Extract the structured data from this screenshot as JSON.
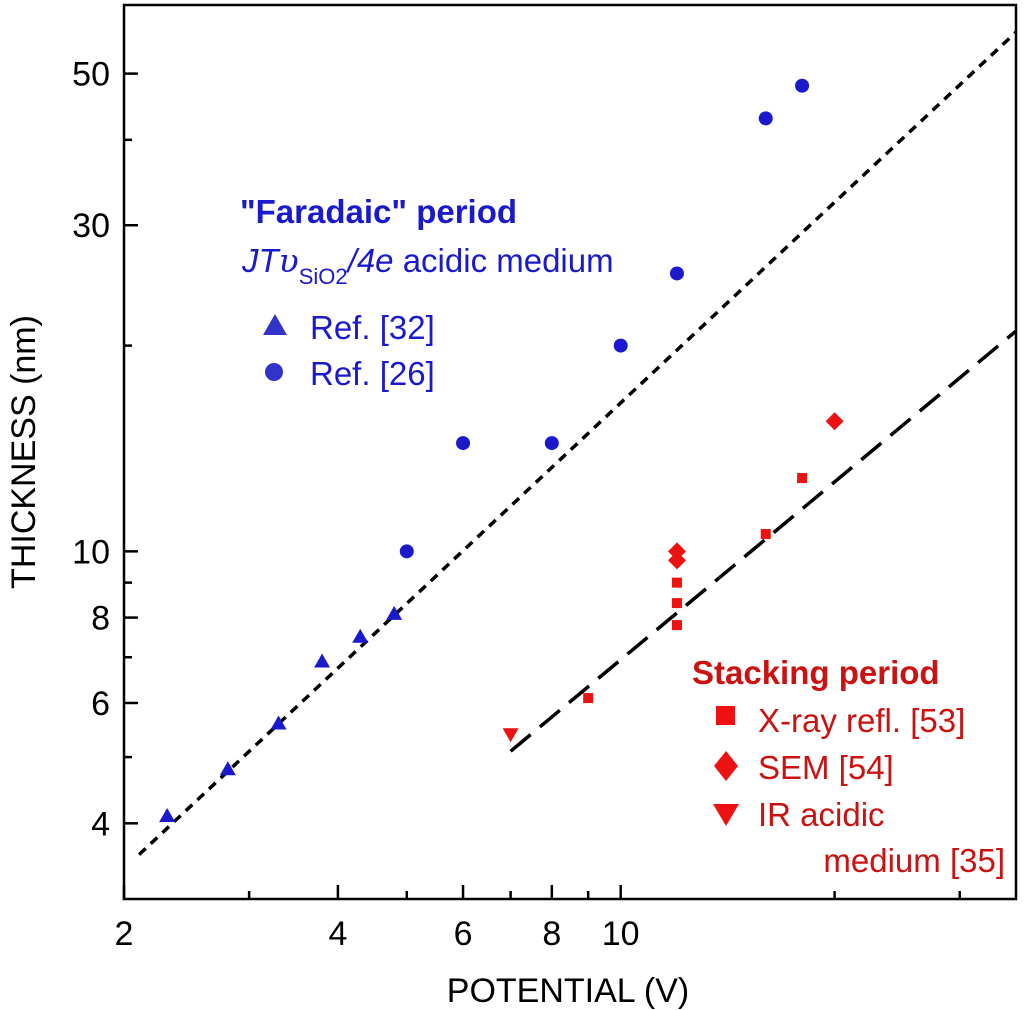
{
  "chart_data": {
    "type": "scatter",
    "x_scale": "log",
    "y_scale": "log",
    "xlabel": "POTENTIAL (V)",
    "ylabel": "THICKNESS (nm)",
    "xlim": [
      2,
      36
    ],
    "ylim": [
      3.1,
      63
    ],
    "x_ticks": [
      2,
      4,
      6,
      8,
      10
    ],
    "x_ticks_minor": [
      3,
      5,
      7,
      9,
      20,
      30
    ],
    "y_ticks": [
      4,
      6,
      8,
      10,
      30,
      50
    ],
    "y_ticks_minor": [
      5,
      7,
      9,
      20,
      40
    ],
    "grid": false,
    "series": [
      {
        "name": "Ref. [32]",
        "marker": "triangle-up",
        "color": "#1a1acc",
        "x": [
          2.3,
          2.8,
          3.3,
          3.8,
          4.3,
          4.8
        ],
        "y": [
          4.1,
          4.8,
          5.6,
          6.9,
          7.5,
          8.1
        ]
      },
      {
        "name": "Ref. [26]",
        "marker": "circle",
        "color": "#1a1acc",
        "x": [
          5.0,
          6.0,
          8.0,
          10.0,
          12.0,
          16.0,
          18.0
        ],
        "y": [
          10.0,
          14.4,
          14.4,
          20.0,
          25.5,
          43.0,
          48.0
        ]
      },
      {
        "name": "X-ray refl. [53]",
        "marker": "square",
        "color": "#ee1111",
        "x": [
          9.0,
          12.0,
          12.0,
          12.0,
          16.0,
          18.0
        ],
        "y": [
          6.1,
          7.8,
          8.4,
          9.0,
          10.6,
          12.8
        ]
      },
      {
        "name": "SEM [54]",
        "marker": "diamond",
        "color": "#ee1111",
        "x": [
          12.0,
          12.0,
          20.0
        ],
        "y": [
          9.7,
          10.0,
          15.5
        ]
      },
      {
        "name": "IR acidic medium [35]",
        "marker": "triangle-down",
        "color": "#ee1111",
        "x": [
          7.0
        ],
        "y": [
          5.4
        ]
      }
    ],
    "fit_lines": [
      {
        "style": "short-dash",
        "color": "#000000",
        "x": [
          2.1,
          36.0
        ],
        "y": [
          3.6,
          57.5
        ]
      },
      {
        "style": "long-dash",
        "color": "#000000",
        "x": [
          7.0,
          36.0
        ],
        "y": [
          5.1,
          21.0
        ]
      }
    ],
    "legends": [
      {
        "title": "\"Faradaic\" period",
        "formula": [
          "JT",
          "υ",
          "SiO2",
          "/4e",
          " acidic medium"
        ],
        "entries": [
          "Ref. [32]",
          "Ref. [26]"
        ],
        "color": "#1a1acc",
        "placement": "top-left"
      },
      {
        "title": "Stacking period",
        "entries": [
          "X-ray refl. [53]",
          "SEM [54]",
          "IR acidic",
          "medium [35]"
        ],
        "color": "#cc1111",
        "placement": "bottom-right"
      }
    ]
  }
}
